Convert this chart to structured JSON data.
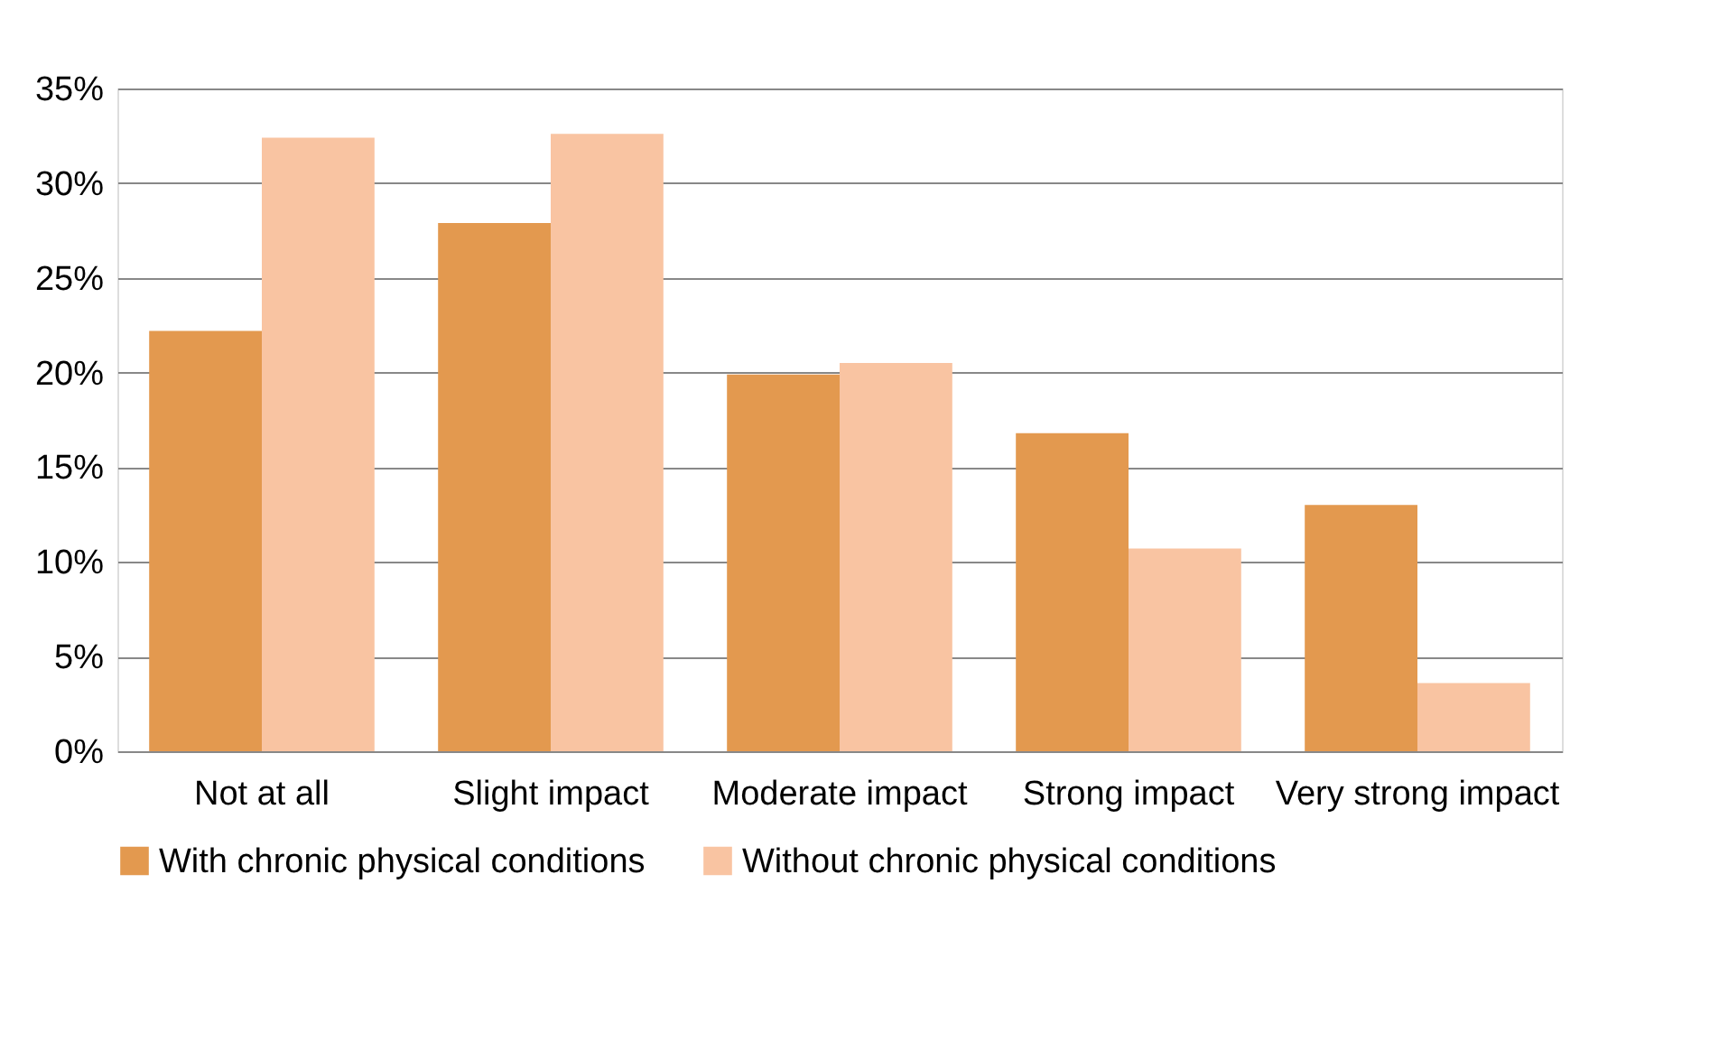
{
  "chart_data": {
    "type": "bar",
    "categories": [
      "Not at all",
      "Slight impact",
      "Moderate impact",
      "Strong impact",
      "Very strong impact"
    ],
    "series": [
      {
        "name": "With chronic physical conditions",
        "color": "#e3994f",
        "values": [
          22.2,
          27.9,
          19.9,
          16.8,
          13.0
        ]
      },
      {
        "name": "Without chronic physical conditions",
        "color": "#f9c4a2",
        "values": [
          32.4,
          32.6,
          20.5,
          10.7,
          3.6
        ]
      }
    ],
    "ylim": [
      0,
      35
    ],
    "yticks": [
      {
        "value": 0,
        "label": "0%"
      },
      {
        "value": 5,
        "label": "5%"
      },
      {
        "value": 10,
        "label": "10%"
      },
      {
        "value": 15,
        "label": "15%"
      },
      {
        "value": 20,
        "label": "20%"
      },
      {
        "value": 25,
        "label": "25%"
      },
      {
        "value": 30,
        "label": "30%"
      },
      {
        "value": 35,
        "label": "35%"
      }
    ],
    "grid": "y",
    "legend": "bottom"
  }
}
